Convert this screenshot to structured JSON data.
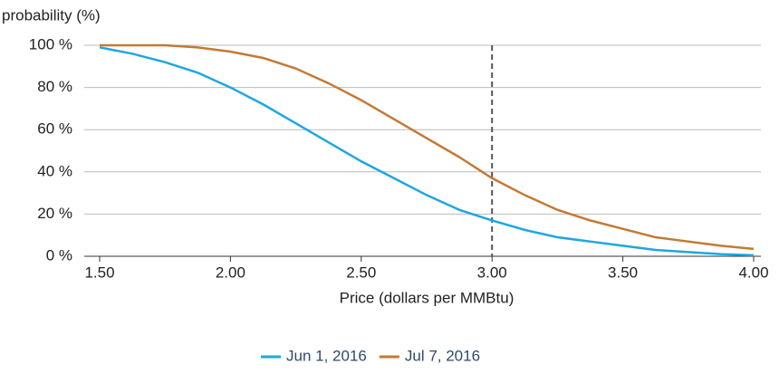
{
  "chart_data": {
    "type": "line",
    "y_axis_label": "probability (%)",
    "x_axis_label": "Price (dollars per MMBtu)",
    "x": [
      1.5,
      1.625,
      1.75,
      1.875,
      2.0,
      2.125,
      2.25,
      2.375,
      2.5,
      2.625,
      2.75,
      2.875,
      3.0,
      3.125,
      3.25,
      3.375,
      3.5,
      3.625,
      3.75,
      3.875,
      4.0
    ],
    "series": [
      {
        "name": "Jun 1, 2016",
        "color": "#1ea7e0",
        "values": [
          99,
          96,
          92,
          87,
          80,
          72,
          63,
          54,
          45,
          37,
          29,
          22,
          17,
          12.5,
          9,
          7,
          5,
          3,
          2,
          1,
          0.5
        ]
      },
      {
        "name": "Jul 7, 2016",
        "color": "#c27a35",
        "values": [
          100,
          100,
          100,
          99,
          97,
          94,
          89,
          82,
          74,
          65,
          56,
          47,
          37,
          29,
          22,
          17,
          13,
          9,
          7,
          5,
          3.5
        ]
      }
    ],
    "xlim": [
      1.5,
      4.0
    ],
    "xticks": [
      {
        "value": 1.5,
        "label": "1.50"
      },
      {
        "value": 2.0,
        "label": "2.00"
      },
      {
        "value": 2.5,
        "label": "2.50"
      },
      {
        "value": 3.0,
        "label": "3.00"
      },
      {
        "value": 3.5,
        "label": "3.50"
      },
      {
        "value": 4.0,
        "label": "4.00"
      }
    ],
    "ylim": [
      0,
      100
    ],
    "yticks": [
      {
        "value": 0,
        "label": "0 %"
      },
      {
        "value": 20,
        "label": "20 %"
      },
      {
        "value": 40,
        "label": "40 %"
      },
      {
        "value": 60,
        "label": "60 %"
      },
      {
        "value": 80,
        "label": "80 %"
      },
      {
        "value": 100,
        "label": "100 %"
      }
    ],
    "vline": 3.0,
    "grid": true,
    "legend": "bottom"
  }
}
